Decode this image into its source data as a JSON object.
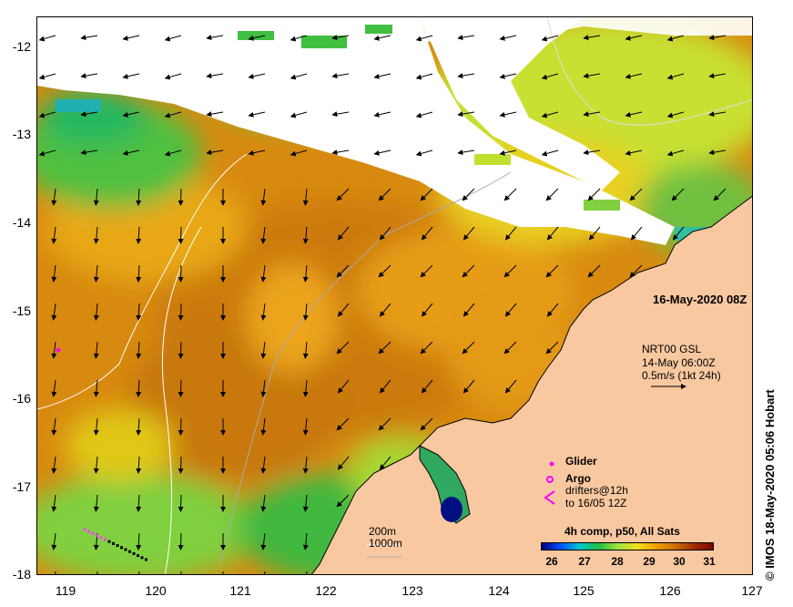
{
  "map": {
    "date_label": "16-May-2020 08Z",
    "credit": "© IMOS 18-May-2020 05:06 Hobart",
    "lat_ticks": [
      "-12",
      "-13",
      "-14",
      "-15",
      "-16",
      "-17",
      "-18"
    ],
    "lon_ticks": [
      "119",
      "120",
      "121",
      "122",
      "123",
      "124",
      "125",
      "126",
      "127"
    ],
    "current_legend": {
      "source": "NRT00 GSL",
      "time": "14-May 06:00Z",
      "scale": "0.5m/s (1kt 24h)"
    },
    "symbols": {
      "glider": "Glider",
      "argo": "Argo",
      "drifters_line1": "drifters@12h",
      "drifters_line2": "to 16/05 12Z"
    },
    "isobaths": {
      "line1": "200m",
      "line2": "1000m"
    },
    "colorbar": {
      "title": "4h comp, p50, All Sats",
      "ticks": [
        "26",
        "27",
        "28",
        "29",
        "30",
        "31"
      ],
      "colors": [
        "#000080",
        "#0050ff",
        "#00c8d0",
        "#20c040",
        "#a0e040",
        "#f0e020",
        "#f0a000",
        "#d07000",
        "#a03000",
        "#800000"
      ]
    },
    "colors": {
      "land": "#f8c8a0",
      "warm_sea": "#d88a10",
      "cloud": "#ffffff",
      "glider": "#ff00ff",
      "argo": "#ff00ff",
      "drifter": "#ff40ff"
    }
  }
}
